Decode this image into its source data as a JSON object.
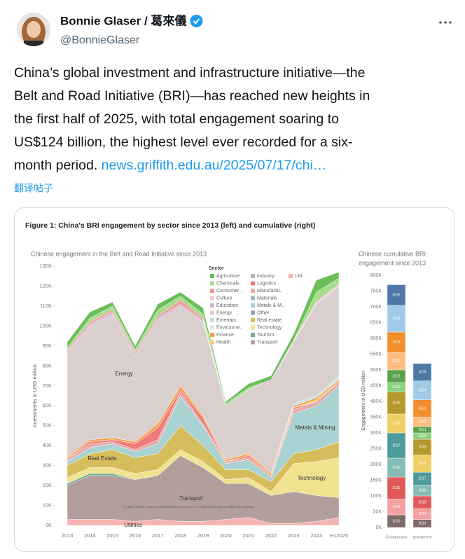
{
  "post": {
    "author_name": "Bonnie Glaser / 葛來儀",
    "handle": "@BonnieGlaser",
    "text_lines": [
      "China’s global investment and infrastructure initiative—the",
      "Belt and Road Initiative (BRI)—has reached new heights in",
      "the first half of 2025,  with total engagement soaring to",
      "US$124 billion, the highest level ever recorded for a six-",
      "month period."
    ],
    "link": "news.griffith.edu.au/2025/07/17/chi…",
    "translate": "翻译帖子"
  },
  "figure_title": "Figure 1: China's BRI engagement by sector since 2013 (left) and cumulative (right)",
  "chart_data": [
    {
      "type": "area",
      "stacked": true,
      "subtitle": "Chinese engagement in the Belt and Road Initiative since 2013",
      "y_label": "Investments in USD million",
      "legend_title": "Sector",
      "source": "(c) 2025 Green Finance & Development Center, FISF Fudan University & Griffith Asia Institute",
      "annotations": [
        "Energy",
        "Real Estate",
        "Transport",
        "Utilities",
        "Metals & Mining",
        "Technology"
      ],
      "categories": [
        "2013",
        "2014",
        "2015",
        "2016",
        "2017",
        "2018",
        "2019",
        "2020",
        "2021",
        "2022",
        "2023",
        "2024",
        "H12025"
      ],
      "ylim": [
        0,
        130000
      ],
      "yticks": [
        {
          "value": 0,
          "label": "0K"
        },
        {
          "value": 10000,
          "label": "10K"
        },
        {
          "value": 20000,
          "label": "20K"
        },
        {
          "value": 30000,
          "label": "30K"
        },
        {
          "value": 40000,
          "label": "40K"
        },
        {
          "value": 50000,
          "label": "50K"
        },
        {
          "value": 60000,
          "label": "60K"
        },
        {
          "value": 70000,
          "label": "70K"
        },
        {
          "value": 80000,
          "label": "80K"
        },
        {
          "value": 90000,
          "label": "90K"
        },
        {
          "value": 100000,
          "label": "100K"
        },
        {
          "value": 110000,
          "label": "110K"
        },
        {
          "value": 120000,
          "label": "120K"
        },
        {
          "value": 130000,
          "label": "130K"
        }
      ],
      "grid": false,
      "series": [
        {
          "name": "Agriculture",
          "color": "#6bbf5a",
          "values": [
            3000,
            3000,
            2000,
            2000,
            3000,
            2000,
            3000,
            1000,
            2000,
            2000,
            3000,
            6000,
            3000
          ]
        },
        {
          "name": "Chemicals",
          "color": "#a9dc8e",
          "values": [
            1000,
            2000,
            2000,
            1000,
            3000,
            2000,
            2000,
            1000,
            1000,
            0,
            0,
            5000,
            3000
          ]
        },
        {
          "name": "Consumer ..",
          "color": "#f29a9a",
          "values": [
            1000,
            1000,
            1000,
            1000,
            1000,
            2000,
            1000,
            0,
            0,
            0,
            0,
            0,
            0
          ]
        },
        {
          "name": "Culture",
          "color": "#f5c8d8",
          "values": [
            0,
            0,
            0,
            0,
            0,
            0,
            0,
            0,
            0,
            0,
            1000,
            1000,
            1000
          ]
        },
        {
          "name": "Education",
          "color": "#d2b0d2",
          "values": [
            0,
            1000,
            1000,
            1000,
            1000,
            1000,
            1000,
            0,
            0,
            1000,
            0,
            0,
            0
          ]
        },
        {
          "name": "Energy",
          "color": "#d9d0cd",
          "values": [
            53000,
            57000,
            62000,
            43000,
            52000,
            40000,
            47000,
            27000,
            32000,
            46000,
            31000,
            46000,
            45000
          ]
        },
        {
          "name": "Entertain..",
          "color": "#bfe3e6",
          "values": [
            0,
            0,
            0,
            0,
            0,
            0,
            0,
            0,
            0,
            0,
            1000,
            1000,
            1000
          ]
        },
        {
          "name": "Environme..",
          "color": "#dfe6d6",
          "values": [
            0,
            0,
            0,
            0,
            0,
            0,
            0,
            0,
            0,
            0,
            0,
            0,
            1000
          ]
        },
        {
          "name": "Finance",
          "color": "#f5a04a",
          "values": [
            1000,
            1000,
            1000,
            1000,
            2000,
            2000,
            1000,
            1000,
            1000,
            1000,
            1000,
            1000,
            1000
          ]
        },
        {
          "name": "Health",
          "color": "#f7cf7a",
          "values": [
            0,
            0,
            0,
            0,
            0,
            0,
            0,
            0,
            0,
            0,
            0,
            1000,
            0
          ]
        },
        {
          "name": "Industry",
          "color": "#bdb3b0",
          "values": [
            0,
            0,
            0,
            0,
            0,
            0,
            0,
            0,
            0,
            0,
            0,
            0,
            0
          ]
        },
        {
          "name": "Logistics",
          "color": "#ef7b7b",
          "values": [
            0,
            1000,
            1000,
            3000,
            6000,
            1000,
            3000,
            0,
            1000,
            0,
            1000,
            0,
            0
          ]
        },
        {
          "name": "Manufactu..",
          "color": "#e8a9a9",
          "values": [
            1000,
            2000,
            1000,
            1000,
            2000,
            2000,
            1000,
            1000,
            1000,
            1000,
            2000,
            2000,
            2000
          ]
        },
        {
          "name": "Materials",
          "color": "#9cb9cc",
          "values": [
            0,
            0,
            0,
            0,
            0,
            0,
            0,
            0,
            0,
            0,
            0,
            0,
            0
          ]
        },
        {
          "name": "Metals & M..",
          "color": "#a9d3d2",
          "values": [
            2000,
            3000,
            3000,
            3000,
            5000,
            15000,
            10000,
            3000,
            5000,
            2000,
            20000,
            22000,
            28000
          ]
        },
        {
          "name": "Other",
          "color": "#8da7b9",
          "values": [
            0,
            0,
            0,
            0,
            0,
            0,
            0,
            0,
            0,
            0,
            0,
            0,
            0
          ]
        },
        {
          "name": "Real estate",
          "color": "#d6bd5c",
          "values": [
            6000,
            7000,
            9000,
            8000,
            8000,
            12000,
            8000,
            5000,
            4000,
            5000,
            5000,
            6000,
            8000
          ]
        },
        {
          "name": "Technology",
          "color": "#f0e28f",
          "values": [
            3000,
            3000,
            3000,
            3000,
            3000,
            3000,
            3000,
            2000,
            3000,
            2000,
            14000,
            17000,
            20000
          ]
        },
        {
          "name": "Tourism",
          "color": "#6fa89f",
          "values": [
            1000,
            1000,
            1000,
            0,
            0,
            0,
            0,
            0,
            0,
            0,
            0,
            0,
            0
          ]
        },
        {
          "name": "Transport",
          "color": "#b29f9b",
          "values": [
            17000,
            22000,
            22000,
            21000,
            22000,
            33000,
            27000,
            18000,
            17000,
            14000,
            16000,
            13000,
            10000
          ]
        },
        {
          "name": "Util..",
          "color": "#f6b3b3",
          "values": [
            3000,
            3000,
            3000,
            2000,
            3000,
            2000,
            2000,
            3000,
            4000,
            1000,
            1000,
            2000,
            4000
          ]
        }
      ]
    },
    {
      "type": "bar",
      "stacked": true,
      "subtitle": [
        "Chinese cumulative BRI",
        "engagement since 2013"
      ],
      "y_label": "Engagement in USD million",
      "categories": [
        "Construction",
        "Investment"
      ],
      "ylim": [
        0,
        800000
      ],
      "yticks": [
        {
          "value": 0,
          "label": "0K"
        },
        {
          "value": 50000,
          "label": "50K"
        },
        {
          "value": 100000,
          "label": "100K"
        },
        {
          "value": 150000,
          "label": "150K"
        },
        {
          "value": 200000,
          "label": "200K"
        },
        {
          "value": 250000,
          "label": "250K"
        },
        {
          "value": 300000,
          "label": "300K"
        },
        {
          "value": 350000,
          "label": "350K"
        },
        {
          "value": 400000,
          "label": "400K"
        },
        {
          "value": 450000,
          "label": "450K"
        },
        {
          "value": 500000,
          "label": "500K"
        },
        {
          "value": 550000,
          "label": "550K"
        },
        {
          "value": 600000,
          "label": "600K"
        },
        {
          "value": 650000,
          "label": "650K"
        },
        {
          "value": 700000,
          "label": "700K"
        },
        {
          "value": 750000,
          "label": "750K"
        },
        {
          "value": 800000,
          "label": "800K"
        }
      ],
      "series": [
        {
          "name": "2013",
          "color": "#7c6a6a",
          "values": [
            40000,
            25000
          ]
        },
        {
          "name": "2014",
          "color": "#f4a0a0",
          "values": [
            50000,
            35000
          ]
        },
        {
          "name": "2015",
          "color": "#e05a5a",
          "values": [
            70000,
            40000
          ]
        },
        {
          "name": "2016",
          "color": "#86bcb6",
          "values": [
            60000,
            35000
          ]
        },
        {
          "name": "2017",
          "color": "#4e9a9a",
          "values": [
            80000,
            40000
          ]
        },
        {
          "name": "2018",
          "color": "#f1ce63",
          "values": [
            60000,
            55000
          ]
        },
        {
          "name": "2019",
          "color": "#b6992d",
          "values": [
            70000,
            50000
          ]
        },
        {
          "name": "2020",
          "color": "#8cd17d",
          "values": [
            30000,
            20000
          ]
        },
        {
          "name": "2021",
          "color": "#59a14f",
          "values": [
            40000,
            20000
          ]
        },
        {
          "name": "2022",
          "color": "#ffbe7d",
          "values": [
            55000,
            30000
          ]
        },
        {
          "name": "2023",
          "color": "#f28e2b",
          "values": [
            65000,
            55000
          ]
        },
        {
          "name": "2024",
          "color": "#a0cbe8",
          "values": [
            85000,
            60000
          ]
        },
        {
          "name": "2025",
          "color": "#4e79a7",
          "values": [
            65000,
            55000
          ]
        }
      ]
    }
  ]
}
